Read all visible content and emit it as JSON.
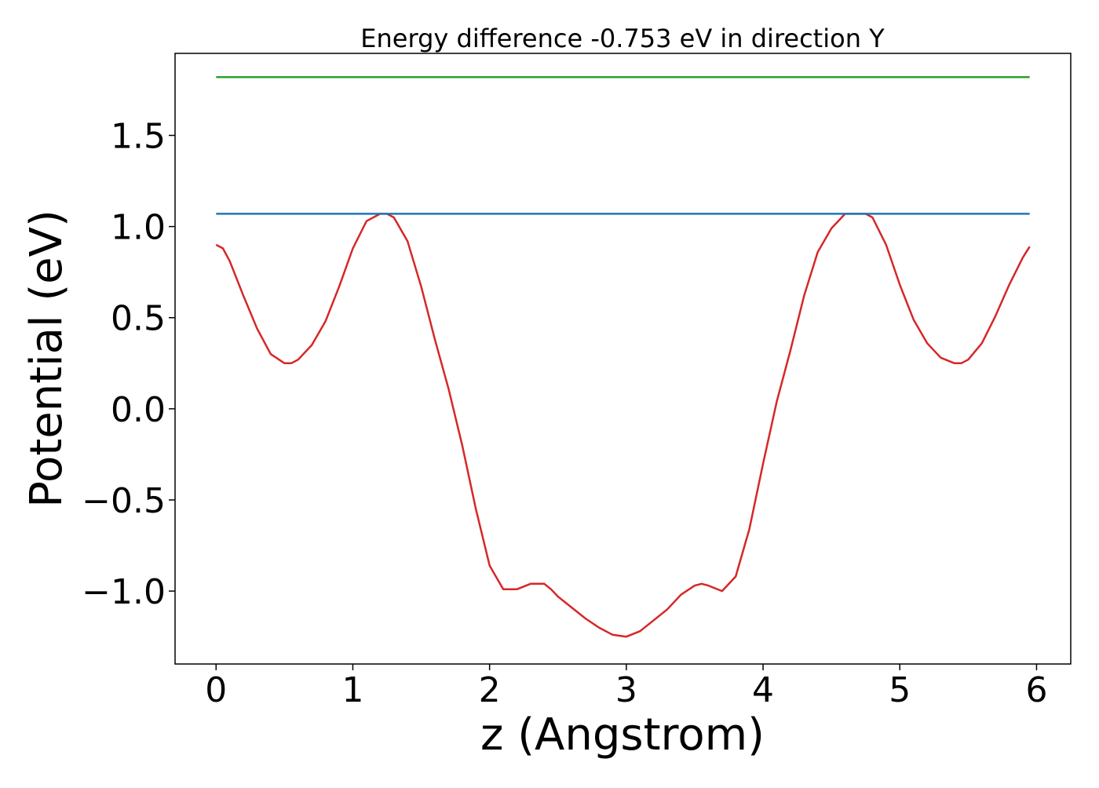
{
  "chart_data": {
    "type": "line",
    "title": "Energy difference -0.753 eV in direction Y",
    "xlabel": "z (Angstrom)",
    "ylabel": "Potential (eV)",
    "xlim": [
      -0.3,
      6.25
    ],
    "ylim": [
      -1.4,
      1.95
    ],
    "xticks": [
      0,
      1,
      2,
      3,
      4,
      5,
      6
    ],
    "xtick_labels": [
      "0",
      "1",
      "2",
      "3",
      "4",
      "5",
      "6"
    ],
    "yticks": [
      -1.0,
      -0.5,
      0.0,
      0.5,
      1.0,
      1.5
    ],
    "ytick_labels": [
      "−1.0",
      "−0.5",
      "0.0",
      "0.5",
      "1.0",
      "1.5"
    ],
    "grid": false,
    "series": [
      {
        "color": "#d62728",
        "x": [
          0,
          0.05,
          0.1,
          0.2,
          0.3,
          0.4,
          0.5,
          0.55,
          0.6,
          0.7,
          0.8,
          0.9,
          1.0,
          1.1,
          1.2,
          1.25,
          1.3,
          1.4,
          1.5,
          1.6,
          1.7,
          1.8,
          1.9,
          2.0,
          2.1,
          2.2,
          2.3,
          2.4,
          2.45,
          2.5,
          2.6,
          2.7,
          2.8,
          2.9,
          3.0,
          3.1,
          3.2,
          3.3,
          3.4,
          3.5,
          3.55,
          3.6,
          3.7,
          3.8,
          3.9,
          4.0,
          4.1,
          4.2,
          4.3,
          4.4,
          4.5,
          4.6,
          4.7,
          4.75,
          4.8,
          4.9,
          5.0,
          5.1,
          5.2,
          5.3,
          5.4,
          5.45,
          5.5,
          5.6,
          5.7,
          5.8,
          5.9,
          5.95
        ],
        "y": [
          0.9,
          0.88,
          0.81,
          0.62,
          0.44,
          0.3,
          0.25,
          0.25,
          0.27,
          0.35,
          0.48,
          0.67,
          0.88,
          1.03,
          1.07,
          1.07,
          1.05,
          0.92,
          0.67,
          0.38,
          0.11,
          -0.2,
          -0.55,
          -0.86,
          -0.99,
          -0.99,
          -0.96,
          -0.96,
          -0.99,
          -1.03,
          -1.09,
          -1.15,
          -1.2,
          -1.24,
          -1.25,
          -1.22,
          -1.16,
          -1.1,
          -1.02,
          -0.97,
          -0.96,
          -0.97,
          -1.0,
          -0.92,
          -0.66,
          -0.3,
          0.04,
          0.32,
          0.62,
          0.86,
          0.99,
          1.07,
          1.07,
          1.07,
          1.05,
          0.9,
          0.68,
          0.49,
          0.36,
          0.28,
          0.25,
          0.25,
          0.27,
          0.36,
          0.51,
          0.68,
          0.83,
          0.89
        ]
      },
      {
        "color": "#1f77b4",
        "x": [
          0,
          5.95
        ],
        "y": [
          1.07,
          1.07
        ]
      },
      {
        "color": "#2ca02c",
        "x": [
          0,
          5.95
        ],
        "y": [
          1.82,
          1.82
        ]
      }
    ]
  }
}
